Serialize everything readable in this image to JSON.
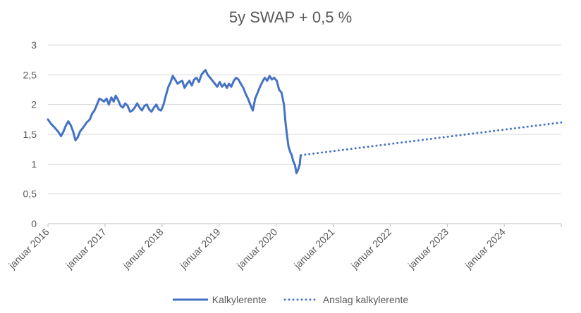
{
  "chart_data": {
    "type": "line",
    "title": "5y SWAP + 0,5 %",
    "xlabel": "",
    "ylabel": "",
    "ylim": [
      0,
      3
    ],
    "yticks": [
      "0",
      "0,5",
      "1",
      "1,5",
      "2",
      "2,5",
      "3"
    ],
    "xlim": [
      "2016-01-01",
      "2024-12-31"
    ],
    "xticks": [
      {
        "date": "2016-01-01",
        "label": "januar 2016"
      },
      {
        "date": "2017-01-01",
        "label": "januar 2017"
      },
      {
        "date": "2018-01-01",
        "label": "januar 2018"
      },
      {
        "date": "2019-01-01",
        "label": "januar 2019"
      },
      {
        "date": "2020-01-01",
        "label": "januar 2020"
      },
      {
        "date": "2021-01-01",
        "label": "januar 2021"
      },
      {
        "date": "2022-01-01",
        "label": "januar 2022"
      },
      {
        "date": "2023-01-01",
        "label": "januar 2023"
      },
      {
        "date": "2024-01-01",
        "label": "januar 2024"
      }
    ],
    "grid": true,
    "legend_position": "bottom",
    "series": [
      {
        "name": "Kalkylerente",
        "style": "solid",
        "color": "#4472C4",
        "points": [
          [
            "2016-01-01",
            1.75
          ],
          [
            "2016-01-20",
            1.68
          ],
          [
            "2016-02-10",
            1.62
          ],
          [
            "2016-03-05",
            1.55
          ],
          [
            "2016-03-25",
            1.47
          ],
          [
            "2016-04-10",
            1.55
          ],
          [
            "2016-04-25",
            1.65
          ],
          [
            "2016-05-10",
            1.72
          ],
          [
            "2016-05-25",
            1.66
          ],
          [
            "2016-06-10",
            1.55
          ],
          [
            "2016-06-25",
            1.4
          ],
          [
            "2016-07-10",
            1.45
          ],
          [
            "2016-07-25",
            1.55
          ],
          [
            "2016-08-15",
            1.62
          ],
          [
            "2016-09-05",
            1.7
          ],
          [
            "2016-09-25",
            1.75
          ],
          [
            "2016-10-10",
            1.85
          ],
          [
            "2016-10-25",
            1.9
          ],
          [
            "2016-11-10",
            2.0
          ],
          [
            "2016-11-25",
            2.1
          ],
          [
            "2016-12-10",
            2.08
          ],
          [
            "2016-12-25",
            2.05
          ],
          [
            "2017-01-10",
            2.1
          ],
          [
            "2017-01-25",
            2.0
          ],
          [
            "2017-02-10",
            2.12
          ],
          [
            "2017-02-25",
            2.05
          ],
          [
            "2017-03-10",
            2.15
          ],
          [
            "2017-03-25",
            2.08
          ],
          [
            "2017-04-10",
            1.98
          ],
          [
            "2017-04-25",
            1.95
          ],
          [
            "2017-05-10",
            2.02
          ],
          [
            "2017-05-25",
            1.98
          ],
          [
            "2017-06-10",
            1.88
          ],
          [
            "2017-06-25",
            1.9
          ],
          [
            "2017-07-10",
            1.95
          ],
          [
            "2017-07-25",
            2.02
          ],
          [
            "2017-08-10",
            1.95
          ],
          [
            "2017-08-25",
            1.9
          ],
          [
            "2017-09-10",
            1.98
          ],
          [
            "2017-09-25",
            2.0
          ],
          [
            "2017-10-10",
            1.92
          ],
          [
            "2017-10-25",
            1.88
          ],
          [
            "2017-11-10",
            1.95
          ],
          [
            "2017-11-25",
            2.0
          ],
          [
            "2017-12-10",
            1.92
          ],
          [
            "2017-12-25",
            1.9
          ],
          [
            "2018-01-10",
            2.0
          ],
          [
            "2018-01-25",
            2.15
          ],
          [
            "2018-02-10",
            2.3
          ],
          [
            "2018-02-25",
            2.38
          ],
          [
            "2018-03-10",
            2.48
          ],
          [
            "2018-03-25",
            2.42
          ],
          [
            "2018-04-10",
            2.35
          ],
          [
            "2018-04-25",
            2.38
          ],
          [
            "2018-05-10",
            2.4
          ],
          [
            "2018-05-25",
            2.28
          ],
          [
            "2018-06-10",
            2.35
          ],
          [
            "2018-06-25",
            2.4
          ],
          [
            "2018-07-10",
            2.32
          ],
          [
            "2018-07-25",
            2.42
          ],
          [
            "2018-08-10",
            2.45
          ],
          [
            "2018-08-25",
            2.38
          ],
          [
            "2018-09-10",
            2.5
          ],
          [
            "2018-09-25",
            2.55
          ],
          [
            "2018-10-05",
            2.58
          ],
          [
            "2018-10-20",
            2.5
          ],
          [
            "2018-11-05",
            2.45
          ],
          [
            "2018-11-20",
            2.4
          ],
          [
            "2018-12-05",
            2.35
          ],
          [
            "2018-12-20",
            2.3
          ],
          [
            "2019-01-05",
            2.38
          ],
          [
            "2019-01-20",
            2.3
          ],
          [
            "2019-02-05",
            2.35
          ],
          [
            "2019-02-20",
            2.28
          ],
          [
            "2019-03-05",
            2.35
          ],
          [
            "2019-03-20",
            2.3
          ],
          [
            "2019-04-05",
            2.4
          ],
          [
            "2019-04-20",
            2.45
          ],
          [
            "2019-05-05",
            2.42
          ],
          [
            "2019-05-20",
            2.35
          ],
          [
            "2019-06-05",
            2.28
          ],
          [
            "2019-06-20",
            2.18
          ],
          [
            "2019-07-05",
            2.1
          ],
          [
            "2019-07-20",
            2.0
          ],
          [
            "2019-08-05",
            1.9
          ],
          [
            "2019-08-20",
            2.1
          ],
          [
            "2019-09-05",
            2.2
          ],
          [
            "2019-09-20",
            2.3
          ],
          [
            "2019-10-05",
            2.38
          ],
          [
            "2019-10-20",
            2.45
          ],
          [
            "2019-11-05",
            2.4
          ],
          [
            "2019-11-20",
            2.48
          ],
          [
            "2019-12-05",
            2.42
          ],
          [
            "2019-12-20",
            2.45
          ],
          [
            "2020-01-05",
            2.4
          ],
          [
            "2020-01-20",
            2.25
          ],
          [
            "2020-02-05",
            2.2
          ],
          [
            "2020-02-20",
            2.0
          ],
          [
            "2020-03-01",
            1.7
          ],
          [
            "2020-03-10",
            1.5
          ],
          [
            "2020-03-20",
            1.3
          ],
          [
            "2020-04-01",
            1.2
          ],
          [
            "2020-04-10",
            1.15
          ],
          [
            "2020-04-20",
            1.05
          ],
          [
            "2020-05-01",
            0.98
          ],
          [
            "2020-05-10",
            0.85
          ],
          [
            "2020-05-20",
            0.9
          ],
          [
            "2020-06-01",
            1.0
          ],
          [
            "2020-06-05",
            1.12
          ],
          [
            "2020-06-08",
            1.15
          ]
        ]
      },
      {
        "name": "Anslag kalkylerente",
        "style": "dotted",
        "color": "#4472C4",
        "points": [
          [
            "2020-06-08",
            1.15
          ],
          [
            "2024-12-31",
            1.7
          ]
        ]
      }
    ]
  }
}
